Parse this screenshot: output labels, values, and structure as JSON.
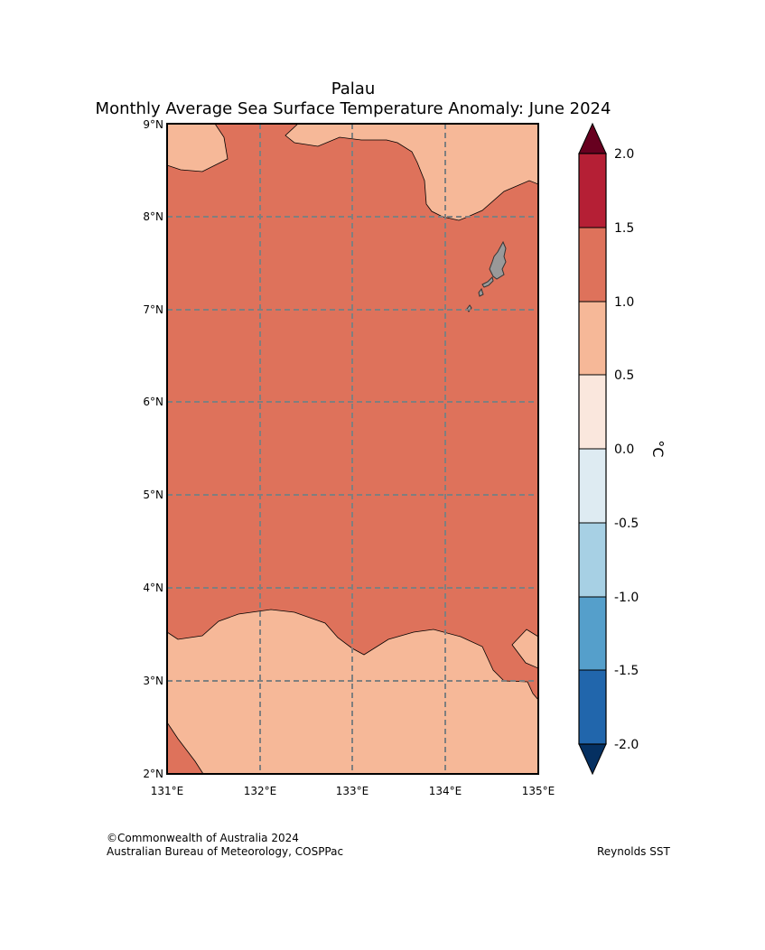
{
  "title": "Palau",
  "subtitle": "Monthly Average Sea Surface Temperature Anomaly: June 2024",
  "map": {
    "region": "Palau",
    "lon_range": [
      131,
      135
    ],
    "lat_range": [
      2,
      9
    ],
    "lon_labels": [
      "131°E",
      "132°E",
      "133°E",
      "134°E",
      "135°E"
    ],
    "lat_labels": [
      "2°N",
      "3°N",
      "4°N",
      "5°N",
      "6°N",
      "7°N",
      "8°N",
      "9°N"
    ],
    "gridlines": true,
    "land_color": "#999999",
    "anomaly_fields": [
      {
        "band": "1.0 to 1.5",
        "color": "#de725b",
        "extent": "most of the domain"
      },
      {
        "band": "0.5 to 1.0",
        "color": "#f6b898",
        "extent": "south of ~3.5°N and patches in the north"
      }
    ]
  },
  "colorbar": {
    "label": "°C",
    "ticks": [
      "2.0",
      "1.5",
      "1.0",
      "0.5",
      "0.0",
      "-0.5",
      "-1.0",
      "-1.5",
      "-2.0"
    ],
    "extend": "both",
    "over_color": "#67001f",
    "under_color": "#053061",
    "bands": [
      {
        "range": "1.5 to 2.0",
        "color": "#b51f35"
      },
      {
        "range": "1.0 to 1.5",
        "color": "#de725b"
      },
      {
        "range": "0.5 to 1.0",
        "color": "#f6b898"
      },
      {
        "range": "0.0 to 0.5",
        "color": "#fae7dd"
      },
      {
        "range": "-0.5 to 0.0",
        "color": "#deebf2"
      },
      {
        "range": "-1.0 to -0.5",
        "color": "#a7d0e4"
      },
      {
        "range": "-1.5 to -1.0",
        "color": "#559fcb"
      },
      {
        "range": "-2.0 to -1.5",
        "color": "#2166ac"
      }
    ]
  },
  "footer": {
    "copyright": "©Commonwealth of Australia 2024",
    "agency": "Australian Bureau of Meteorology, COSPPac",
    "dataset": "Reynolds SST"
  }
}
